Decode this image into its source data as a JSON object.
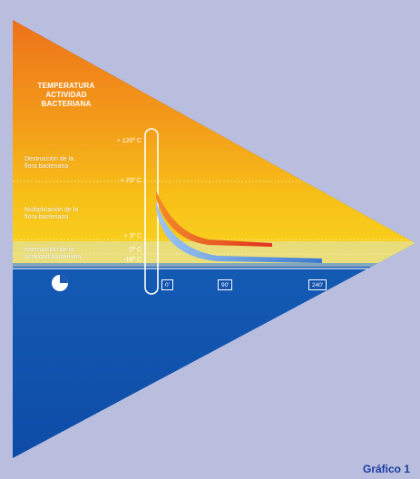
{
  "title_lines": [
    "TEMPERATURA",
    "ACTIVIDAD",
    "BACTERIANA"
  ],
  "zones": [
    {
      "line1": "Destrucción de la",
      "line2": "flora bacteriana"
    },
    {
      "line1": "Multiplicación de la",
      "line2": "flora bacteriana"
    },
    {
      "line1": "Interrupción de la",
      "line2": "actividad bacteriana"
    }
  ],
  "temperatures": [
    "+ 120º C",
    "+ 70º C",
    "+ 3º C",
    "0º C",
    "-18º C"
  ],
  "times": [
    "0'",
    "90'",
    "240'"
  ],
  "caption": "Gráfico 1",
  "colors": {
    "background": "#b9bedf",
    "hot": "#ee7a1c",
    "warm": "#f7c21a",
    "cold": "#1658b8",
    "curve_hot": "#e0362a",
    "curve_cold": "#4a86d8"
  }
}
